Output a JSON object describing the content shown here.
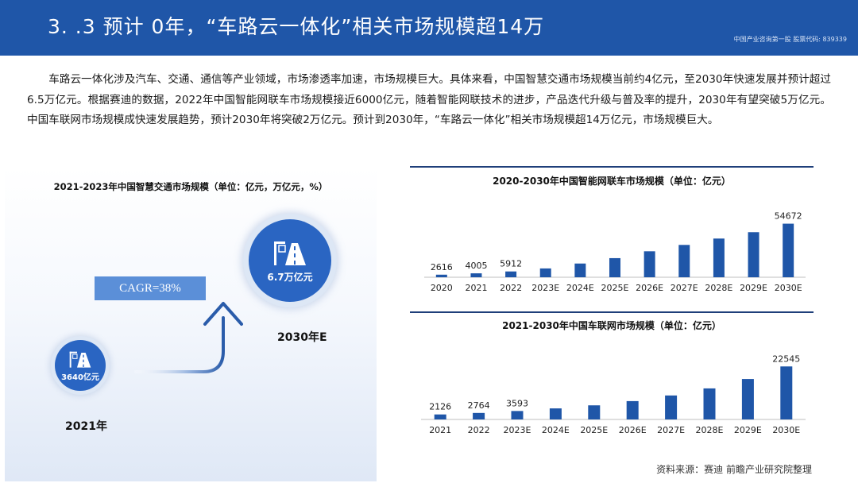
{
  "header": {
    "title": "3.  .3  预计    0年，“车路云一体化”相关市场规模超14万",
    "brand": "中国产业咨询第一股 股票代码: 839339"
  },
  "intro": "车路云一体化涉及汽车、交通、通信等产业领域，市场渗透率加速，市场规模巨大。具体来看，中国智慧交通市场规模当前约4亿元，至2030年快速发展并预计超过6.5万亿元。根据赛迪的数据，2022年中国智能网联车市场规模接近6000亿元，随着智能网联技术的进步，产品迭代升级与普及率的提升，2030年有望突破5万亿元。中国车联网市场规模成快速发展趋势，预计2030年将突破2万亿元。预计到2030年，“车路云一体化”相关市场规模超14万亿元，市场规模巨大。",
  "left_panel": {
    "title": "2021-2023年中国智慧交通市场规模（单位：亿元，万亿元，%）",
    "cagr": "CAGR=38%",
    "start": {
      "value": "3640亿元",
      "year": "2021年"
    },
    "end": {
      "value": "6.7万亿元",
      "year": "2030年E"
    }
  },
  "chart_data": [
    {
      "type": "bar",
      "title": "2020-2030年中国智能网联车市场规模（单位：亿元）",
      "categories": [
        "2020",
        "2021",
        "2022",
        "2023E",
        "2024E",
        "2025E",
        "2026E",
        "2027E",
        "2028E",
        "2029E",
        "2030E"
      ],
      "values": [
        2616,
        4005,
        5912,
        9000,
        14000,
        19500,
        26500,
        33000,
        39500,
        46000,
        54672
      ],
      "labels": [
        "2616",
        "4005",
        "5912",
        "",
        "",
        "",
        "",
        "",
        "",
        "",
        "54672"
      ],
      "ylim": [
        0,
        60000
      ],
      "color": "#1f56a8",
      "grid": false
    },
    {
      "type": "bar",
      "title": "2021-2030年中国车联网市场规模（单位：亿元）",
      "categories": [
        "2021",
        "2022",
        "2023E",
        "2024E",
        "2025E",
        "2026E",
        "2027E",
        "2028E",
        "2029E",
        "2030E"
      ],
      "values": [
        2126,
        2764,
        3593,
        4700,
        6000,
        7800,
        10200,
        13200,
        17200,
        22545
      ],
      "labels": [
        "2126",
        "2764",
        "3593",
        "",
        "",
        "",
        "",
        "",
        "",
        "22545"
      ],
      "ylim": [
        0,
        25000
      ],
      "color": "#1f56a8",
      "grid": false
    }
  ],
  "source": "资料来源：赛迪 前瞻产业研究院整理",
  "colors": {
    "header": "#1f56a8",
    "bar": "#1f56a8",
    "circle": "#2a65c2",
    "cagr": "#5b8fd8"
  }
}
